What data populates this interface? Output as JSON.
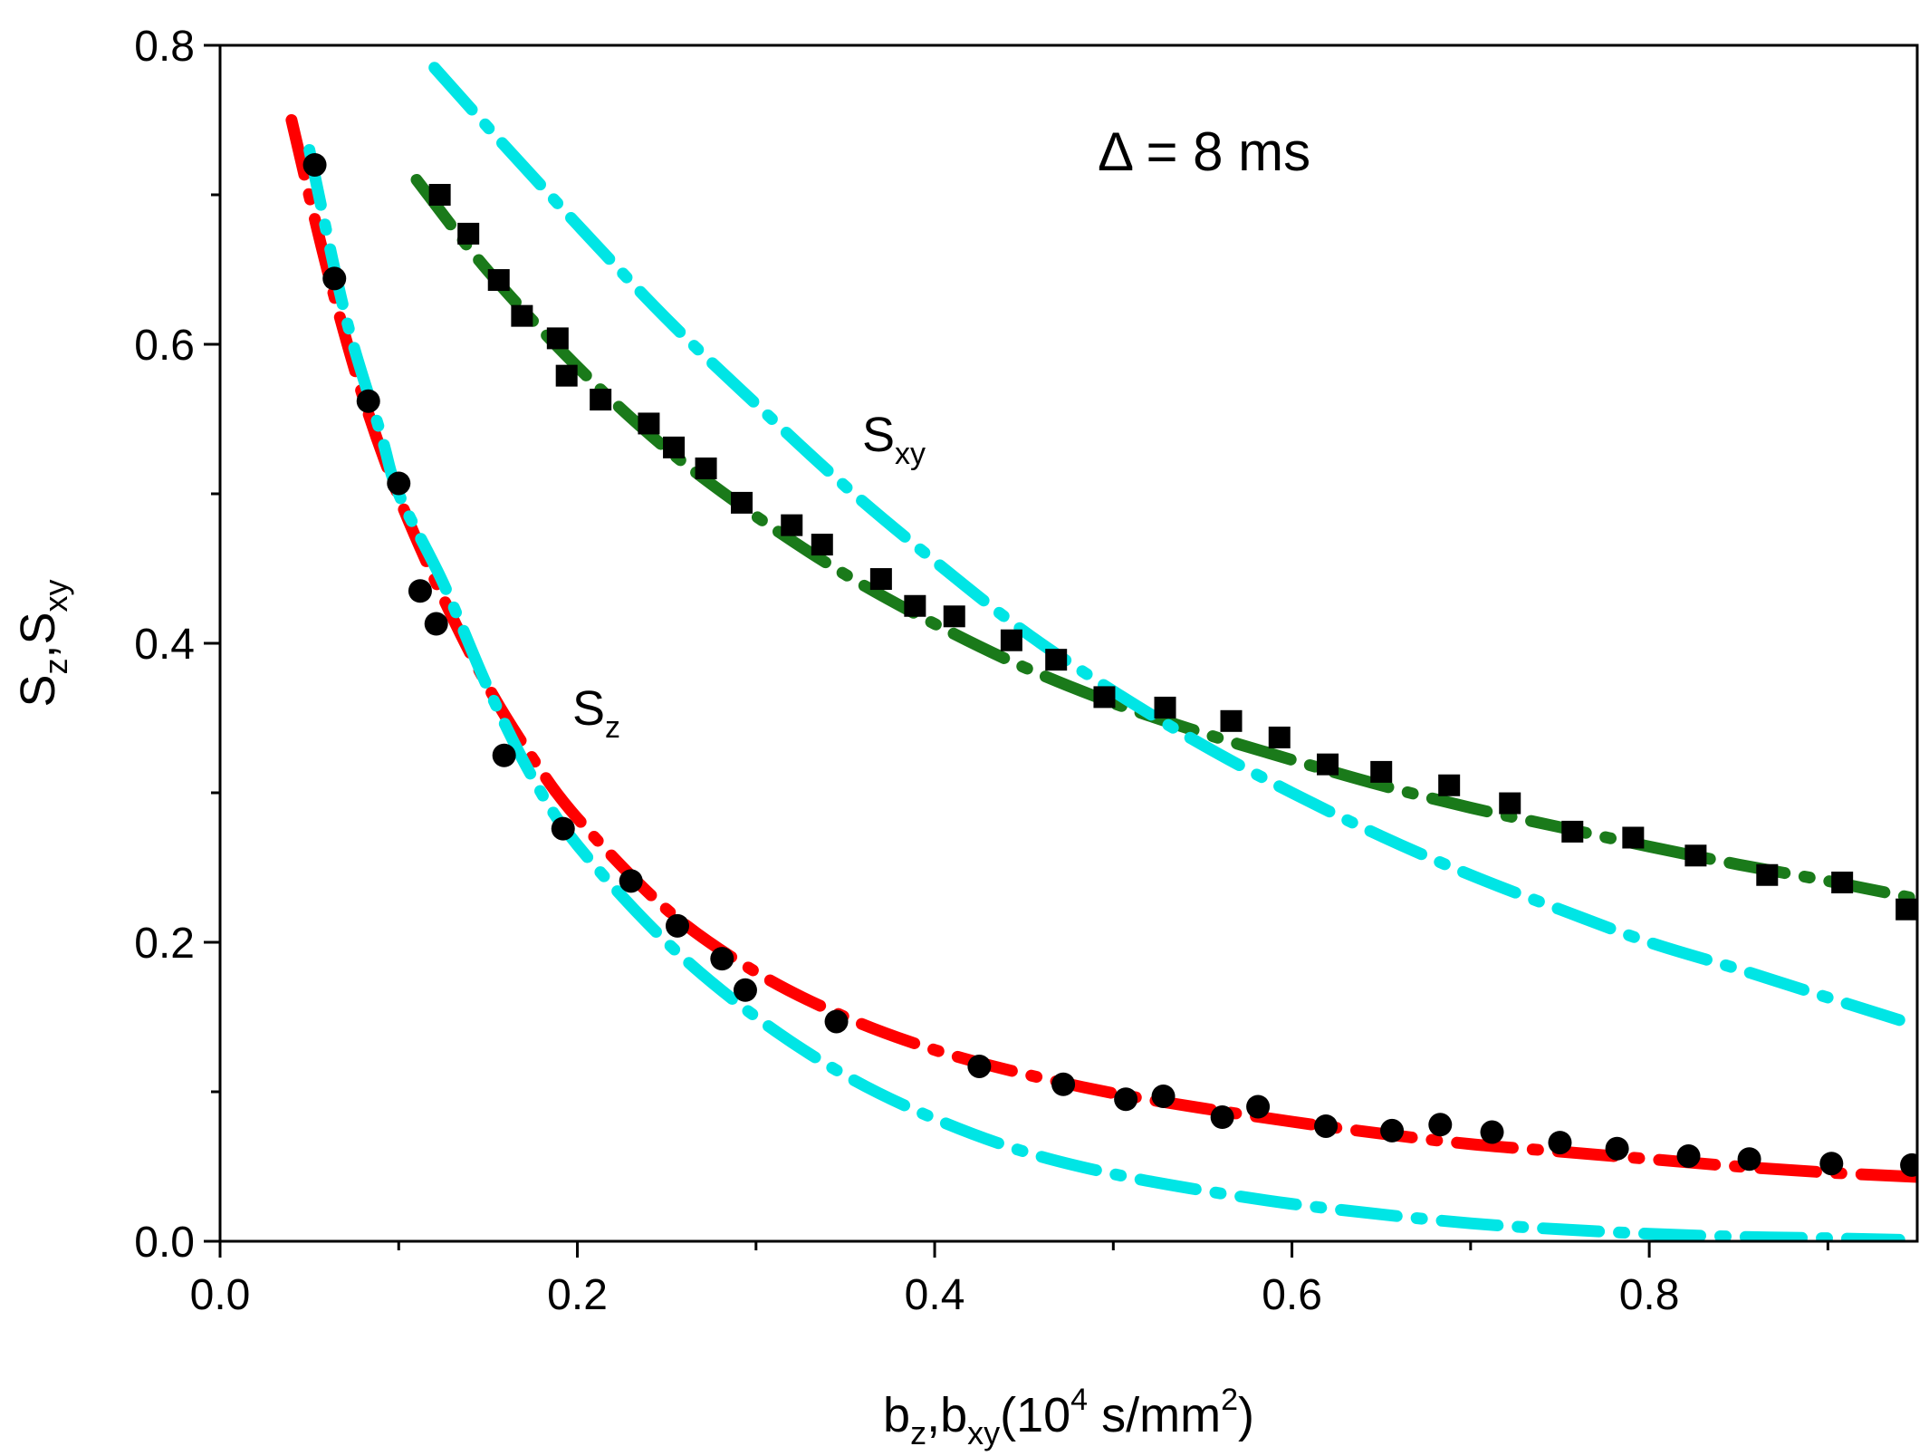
{
  "chart_data": {
    "type": "scatter",
    "title": "",
    "xlabel": {
      "main": "b",
      "sub1": "z",
      "sep": ",b",
      "sub2": "xy",
      "unit_open": "(10",
      "exp": "4",
      "unit_mid": " s/mm",
      "exp2": "2",
      "unit_close": ")"
    },
    "ylabel": {
      "main": "S",
      "sub1": "z",
      "sep": ",S",
      "sub2": "xy"
    },
    "xlim": [
      0.0,
      0.95
    ],
    "ylim": [
      0.0,
      0.8
    ],
    "x_ticks": [
      0.0,
      0.2,
      0.4,
      0.6,
      0.8
    ],
    "x_tick_labels": [
      "0.0",
      "0.2",
      "0.4",
      "0.6",
      "0.8"
    ],
    "y_ticks": [
      0.0,
      0.2,
      0.4,
      0.6,
      0.8
    ],
    "y_tick_labels": [
      "0.0",
      "0.2",
      "0.4",
      "0.6",
      "0.8"
    ],
    "x_minor_step": 0.1,
    "y_minor_step": 0.1,
    "grid": false,
    "annotations": {
      "delta": "Δ = 8 ms",
      "sxy_main": "S",
      "sxy_sub": "xy",
      "sz_main": "S",
      "sz_sub": "z"
    },
    "series": [
      {
        "name": "Sxy data",
        "kind": "markers",
        "marker": "square",
        "color": "#000000",
        "x": [
          0.123,
          0.139,
          0.156,
          0.169,
          0.189,
          0.194,
          0.213,
          0.24,
          0.254,
          0.272,
          0.292,
          0.32,
          0.337,
          0.37,
          0.389,
          0.411,
          0.443,
          0.468,
          0.495,
          0.529,
          0.566,
          0.593,
          0.62,
          0.65,
          0.688,
          0.722,
          0.757,
          0.791,
          0.826,
          0.866,
          0.908,
          0.944
        ],
        "y": [
          0.7,
          0.674,
          0.643,
          0.619,
          0.604,
          0.579,
          0.563,
          0.547,
          0.531,
          0.517,
          0.494,
          0.479,
          0.466,
          0.443,
          0.425,
          0.418,
          0.402,
          0.389,
          0.364,
          0.357,
          0.348,
          0.337,
          0.319,
          0.314,
          0.305,
          0.293,
          0.274,
          0.27,
          0.258,
          0.245,
          0.24,
          0.222
        ]
      },
      {
        "name": "Sz data",
        "kind": "markers",
        "marker": "circle",
        "color": "#000000",
        "x": [
          0.053,
          0.064,
          0.083,
          0.1,
          0.112,
          0.121,
          0.159,
          0.192,
          0.23,
          0.256,
          0.281,
          0.294,
          0.345,
          0.425,
          0.472,
          0.507,
          0.528,
          0.561,
          0.581,
          0.619,
          0.656,
          0.683,
          0.712,
          0.75,
          0.782,
          0.822,
          0.856,
          0.902,
          0.947
        ],
        "y": [
          0.72,
          0.644,
          0.562,
          0.507,
          0.435,
          0.413,
          0.325,
          0.276,
          0.241,
          0.211,
          0.189,
          0.168,
          0.147,
          0.117,
          0.105,
          0.095,
          0.097,
          0.083,
          0.09,
          0.077,
          0.074,
          0.078,
          0.073,
          0.066,
          0.062,
          0.057,
          0.055,
          0.052,
          0.051
        ]
      },
      {
        "name": "Sxy fit",
        "kind": "line",
        "color": "#1a7a1a",
        "dash": "dash-dot",
        "x": [
          0.11,
          0.15,
          0.2,
          0.25,
          0.3,
          0.35,
          0.4,
          0.45,
          0.5,
          0.55,
          0.6,
          0.65,
          0.7,
          0.75,
          0.8,
          0.85,
          0.9,
          0.95
        ],
        "y": [
          0.71,
          0.649,
          0.585,
          0.53,
          0.485,
          0.446,
          0.413,
          0.384,
          0.36,
          0.34,
          0.322,
          0.305,
          0.29,
          0.277,
          0.264,
          0.252,
          0.241,
          0.229
        ]
      },
      {
        "name": "Sz fit",
        "kind": "line",
        "color": "#ff0000",
        "dash": "dash-dot",
        "x": [
          0.04,
          0.06,
          0.08,
          0.1,
          0.125,
          0.15,
          0.175,
          0.2,
          0.25,
          0.3,
          0.35,
          0.4,
          0.45,
          0.5,
          0.55,
          0.6,
          0.65,
          0.7,
          0.75,
          0.8,
          0.85,
          0.9,
          0.95
        ],
        "y": [
          0.75,
          0.65,
          0.565,
          0.498,
          0.43,
          0.371,
          0.323,
          0.283,
          0.222,
          0.18,
          0.15,
          0.128,
          0.112,
          0.099,
          0.089,
          0.08,
          0.072,
          0.065,
          0.06,
          0.055,
          0.05,
          0.046,
          0.043
        ]
      },
      {
        "name": "Sxy model",
        "kind": "line",
        "color": "#00e5e5",
        "dash": "dash-dot",
        "x": [
          0.12,
          0.15,
          0.2,
          0.25,
          0.3,
          0.35,
          0.4,
          0.45,
          0.5,
          0.55,
          0.6,
          0.65,
          0.7,
          0.75,
          0.8,
          0.85,
          0.9,
          0.94
        ],
        "y": [
          0.785,
          0.745,
          0.68,
          0.617,
          0.56,
          0.505,
          0.455,
          0.408,
          0.368,
          0.332,
          0.3,
          0.271,
          0.245,
          0.222,
          0.2,
          0.182,
          0.163,
          0.148
        ]
      },
      {
        "name": "Sz model",
        "kind": "line",
        "color": "#00e5e5",
        "dash": "dash-dot",
        "x": [
          0.05,
          0.07,
          0.09,
          0.1,
          0.125,
          0.15,
          0.175,
          0.2,
          0.25,
          0.3,
          0.35,
          0.4,
          0.45,
          0.5,
          0.55,
          0.6,
          0.65,
          0.7,
          0.75,
          0.8,
          0.85,
          0.9,
          0.94
        ],
        "y": [
          0.73,
          0.62,
          0.54,
          0.5,
          0.44,
          0.37,
          0.31,
          0.265,
          0.2,
          0.15,
          0.111,
          0.082,
          0.06,
          0.045,
          0.034,
          0.025,
          0.018,
          0.012,
          0.008,
          0.005,
          0.003,
          0.002,
          0.001
        ]
      }
    ]
  }
}
